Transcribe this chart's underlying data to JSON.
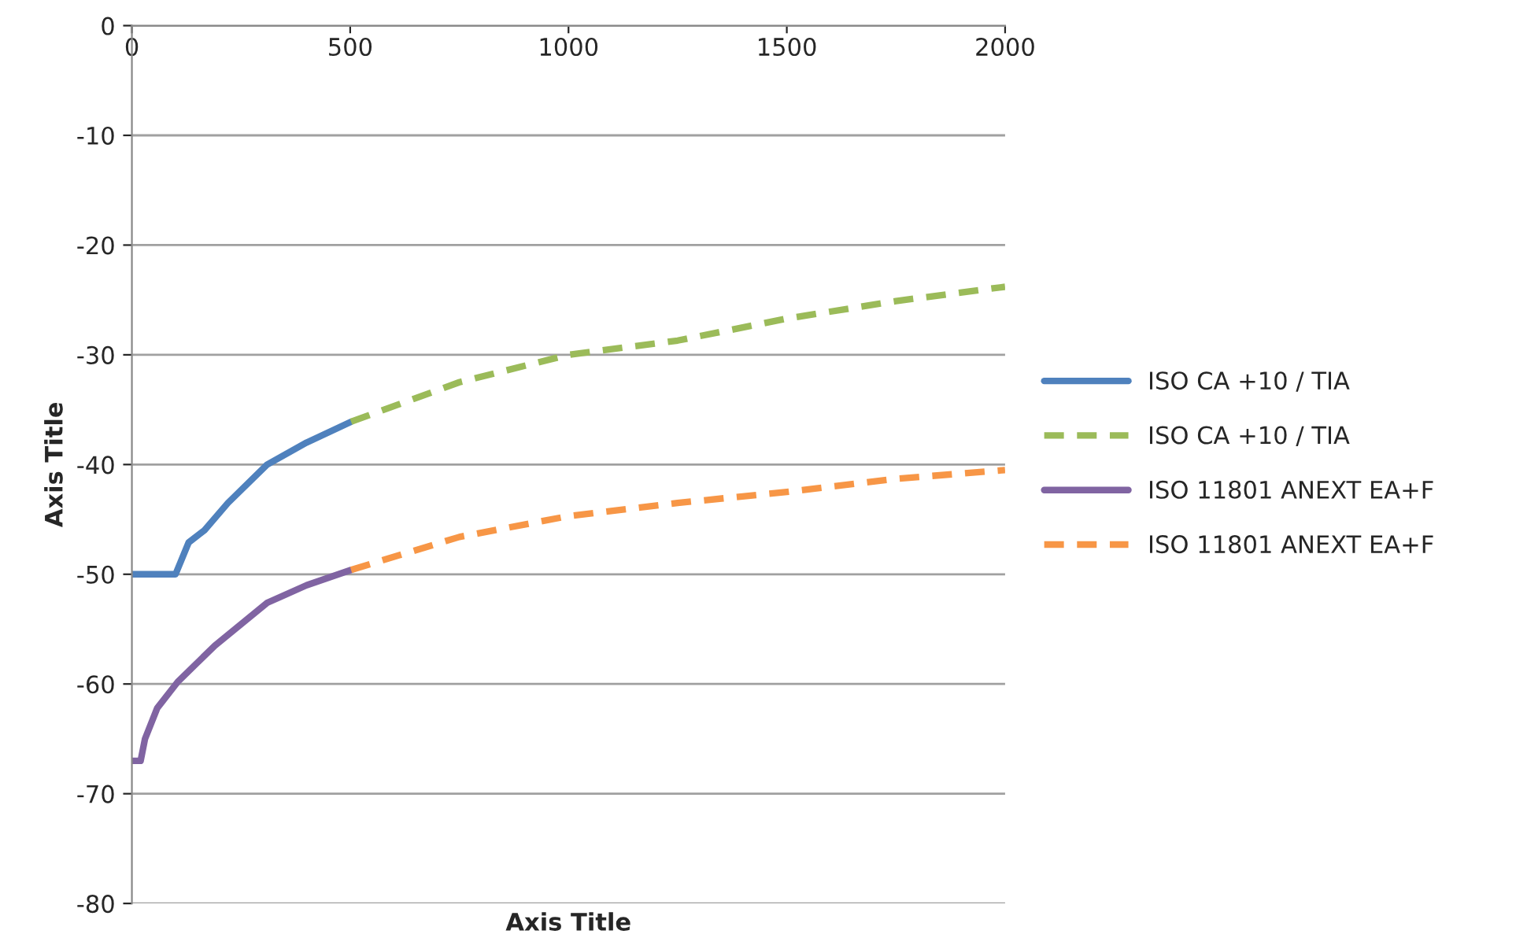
{
  "chart_data": {
    "type": "line",
    "xlabel": "Axis Title",
    "ylabel": "Axis Title",
    "xlim": [
      0,
      2000
    ],
    "xticks": [
      0,
      500,
      1000,
      1500,
      2000
    ],
    "ylim": [
      -80,
      0
    ],
    "yticks": [
      -80,
      -70,
      -60,
      -50,
      -40,
      -30,
      -20,
      -10,
      0
    ],
    "grid": "y",
    "legend": "right",
    "marker": "none",
    "series": [
      {
        "name": "ISO CA +10 / TIA",
        "color": "#4f81bd",
        "line_style": "solid",
        "x": [
          0,
          100,
          130,
          166,
          220,
          310,
          400,
          502
        ],
        "values": [
          -50,
          -50,
          -47.1,
          -46,
          -43.5,
          -40,
          -38,
          -36.1
        ]
      },
      {
        "name": "ISO CA +10 / TIA",
        "color": "#9bbb59",
        "line_style": "dashed",
        "x": [
          502,
          750,
          1000,
          1250,
          1500,
          1750,
          2000
        ],
        "values": [
          -36.1,
          -32.5,
          -30,
          -28.7,
          -26.7,
          -25.1,
          -23.8
        ]
      },
      {
        "name": "ISO 11801 ANEXT EA+F",
        "color": "#8064a2",
        "line_style": "solid",
        "x": [
          0,
          20,
          30,
          58,
          105,
          190,
          310,
          400,
          502
        ],
        "values": [
          -67,
          -67,
          -65,
          -62.2,
          -59.8,
          -56.5,
          -52.6,
          -51,
          -49.6
        ]
      },
      {
        "name": "ISO 11801 ANEXT EA+F",
        "color": "#f79646",
        "line_style": "dashed",
        "x": [
          502,
          750,
          1000,
          1250,
          1500,
          1750,
          2000
        ],
        "values": [
          -49.6,
          -46.6,
          -44.7,
          -43.5,
          -42.5,
          -41.3,
          -40.5
        ]
      }
    ]
  }
}
